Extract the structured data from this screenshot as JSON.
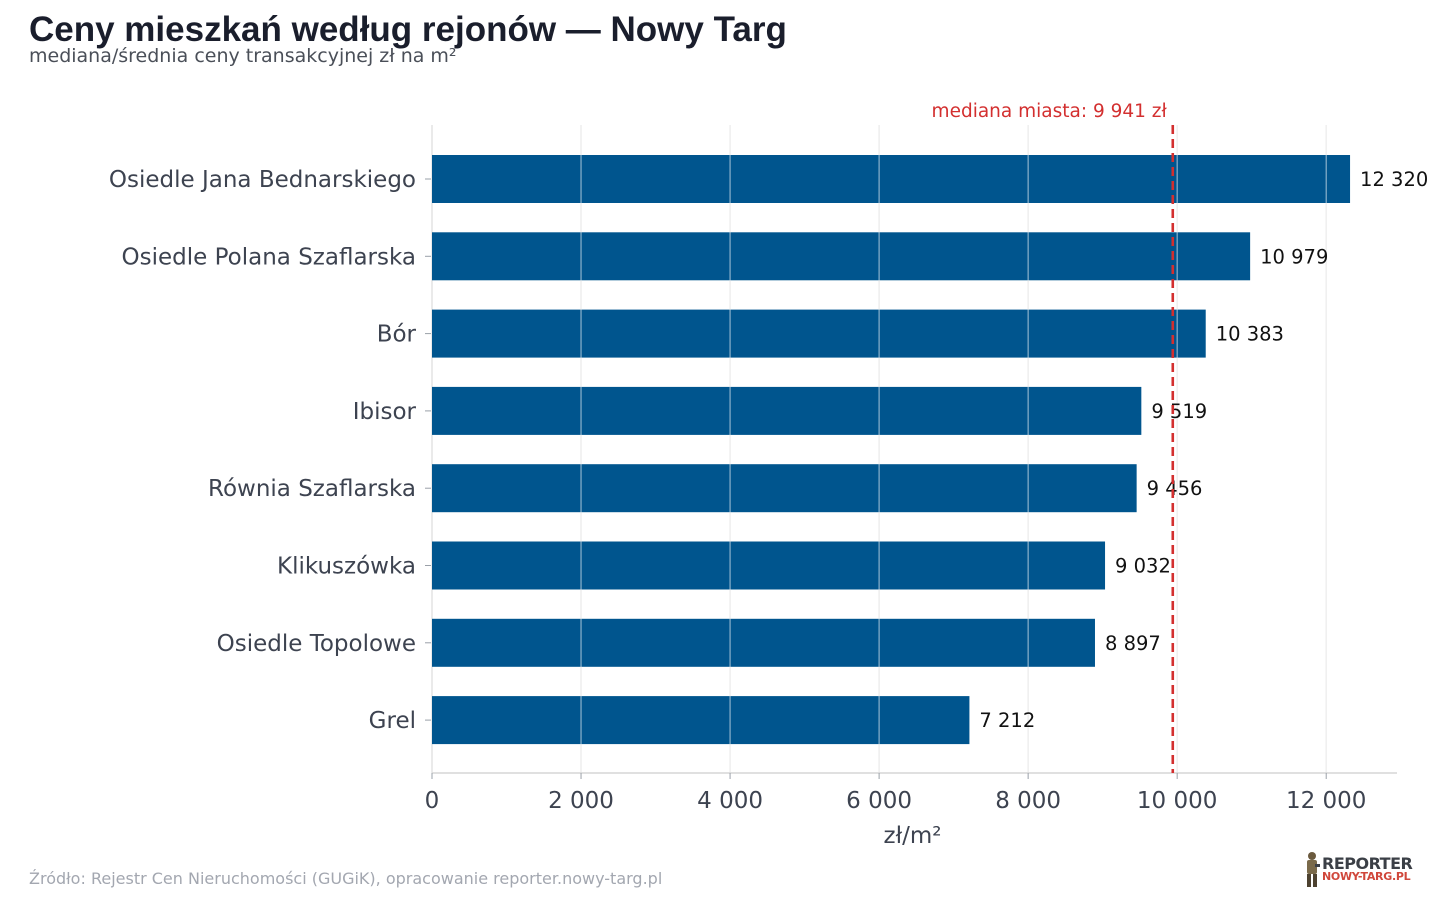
{
  "header": {
    "title": "Ceny mieszkań według rejonów — Nowy Targ",
    "subtitle": "mediana/średnia ceny transakcyjnej zł na m²"
  },
  "footer": {
    "source": "Źródło: Rejestr Cen Nieruchomości (GUGiK), opracowanie reporter.nowy-targ.pl",
    "logo_top": "REPORTER",
    "logo_bottom": "NOWY-TARG.PL"
  },
  "colors": {
    "bar": "#00558e",
    "median_line": "#d32f2f",
    "grid": "#e3e3e3",
    "axis_text": "#3d4350",
    "value_text": "#111111"
  },
  "chart_data": {
    "type": "bar",
    "orientation": "horizontal",
    "categories": [
      "Osiedle Jana Bednarskiego",
      "Osiedle Polana Szaflarska",
      "Bór",
      "Ibisor",
      "Równia Szaflarska",
      "Klikuszówka",
      "Osiedle Topolowe",
      "Grel"
    ],
    "values": [
      12320,
      10979,
      10383,
      9519,
      9456,
      9032,
      8897,
      7212
    ],
    "value_labels": [
      "12 320",
      "10 979",
      "10 383",
      "9 519",
      "9 456",
      "9 032",
      "8 897",
      "7 212"
    ],
    "xlabel": "zł/m²",
    "ylabel": "",
    "xlim": [
      0,
      12950
    ],
    "xticks": [
      0,
      2000,
      4000,
      6000,
      8000,
      10000,
      12000
    ],
    "xtick_labels": [
      "0",
      "2 000",
      "4 000",
      "6 000",
      "8 000",
      "10 000",
      "12 000"
    ],
    "grid": true,
    "reference_line": {
      "value": 9941,
      "label": "mediana miasta: 9 941 zł"
    }
  }
}
